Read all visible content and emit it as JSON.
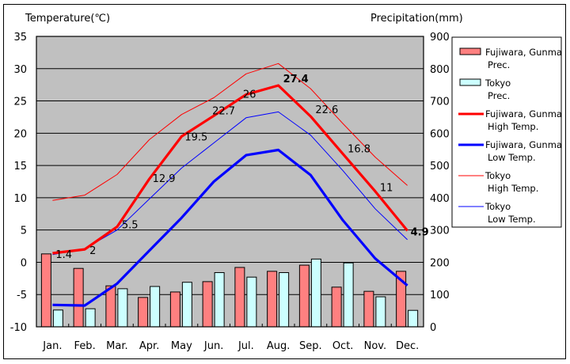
{
  "chart_data": {
    "type": "bar+line",
    "left_axis_title": "Temperature(℃)",
    "right_axis_title": "Precipitation(mm)",
    "categories": [
      "Jan.",
      "Feb.",
      "Mar.",
      "Apr.",
      "May",
      "Jun.",
      "Jul.",
      "Aug.",
      "Sep.",
      "Oct.",
      "Nov.",
      "Dec."
    ],
    "temp_ylim": [
      -10,
      35
    ],
    "temp_ticks": [
      "35",
      "30",
      "25",
      "20",
      "15",
      "10",
      "5",
      "0",
      "-5",
      "-10"
    ],
    "precip_ylim": [
      0,
      900
    ],
    "precip_ticks": [
      "900",
      "800",
      "700",
      "600",
      "500",
      "400",
      "300",
      "200",
      "100",
      "0"
    ],
    "grid": true,
    "legend_position": "right",
    "bar_series": [
      {
        "name": "Fujiwara, Gunma",
        "name2": "Prec.",
        "color": "#ff8080",
        "values": [
          226,
          181,
          127,
          91,
          108,
          140,
          184,
          172,
          191,
          123,
          110,
          172
        ]
      },
      {
        "name": "Tokyo",
        "name2": "Prec.",
        "color": "#ccffff",
        "values": [
          52,
          56,
          118,
          125,
          138,
          168,
          154,
          168,
          210,
          198,
          93,
          51
        ]
      }
    ],
    "line_series": [
      {
        "name": "Fujiwara, Gunma",
        "name2": "High Temp.",
        "color": "#ff0000",
        "width": "thick",
        "values": [
          1.4,
          2,
          5.5,
          12.9,
          19.5,
          22.7,
          26,
          27.4,
          22.6,
          16.8,
          11,
          4.9
        ],
        "labels": [
          "1.4",
          "2",
          "5.5",
          "12.9",
          "19.5",
          "22.7",
          "26",
          "27.4",
          "22.6",
          "16.8",
          "11",
          "4.9"
        ]
      },
      {
        "name": "Fujiwara, Gunma",
        "name2": "Low Temp.",
        "color": "#0000ff",
        "width": "thick",
        "values": [
          -6.6,
          -6.7,
          -3.3,
          1.8,
          6.9,
          12.5,
          16.6,
          17.4,
          13.5,
          6.5,
          0.6,
          -3.6
        ]
      },
      {
        "name": "Tokyo",
        "name2": "High Temp.",
        "color": "#ff0000",
        "width": "thin",
        "values": [
          9.6,
          10.4,
          13.6,
          19.0,
          22.9,
          25.5,
          29.2,
          30.8,
          26.9,
          21.5,
          16.3,
          11.9
        ]
      },
      {
        "name": "Tokyo",
        "name2": "Low Temp.",
        "color": "#0000ff",
        "width": "thin",
        "values": [
          1.2,
          2.1,
          5.0,
          9.8,
          14.6,
          18.5,
          22.4,
          23.3,
          19.7,
          14.2,
          8.3,
          3.5
        ]
      }
    ]
  }
}
